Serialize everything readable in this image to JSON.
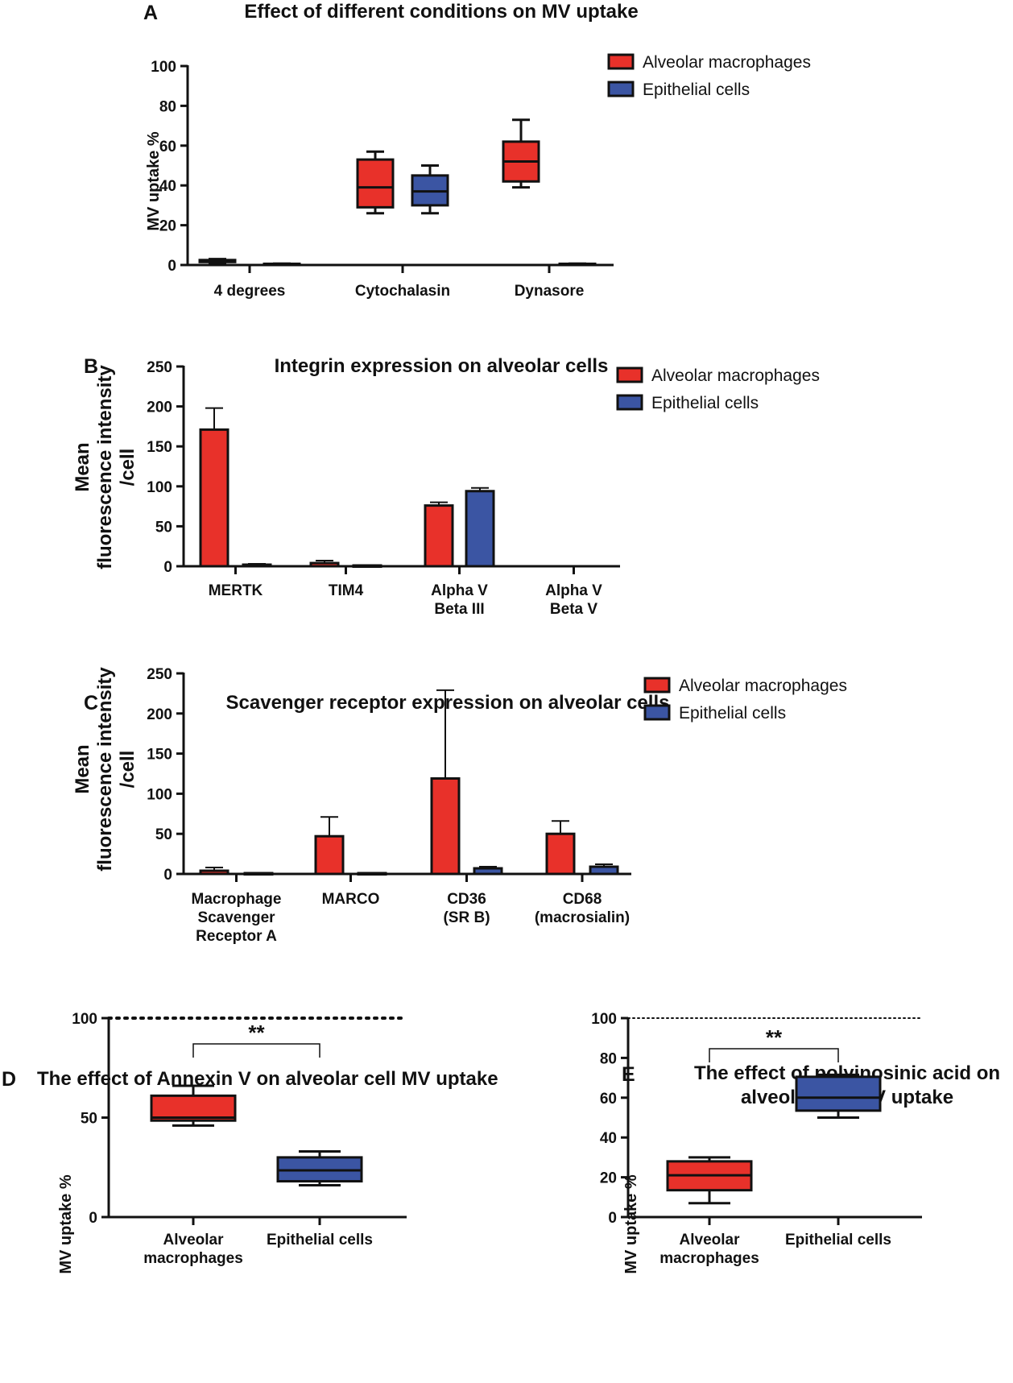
{
  "colors": {
    "macrophage": "#e8312a",
    "epithelial": "#3b55a3"
  },
  "chart_data": [
    {
      "panel": "A",
      "type": "box",
      "title": "Effect of different conditions on MV uptake",
      "ylabel": "MV uptake %",
      "ylim": [
        0,
        100
      ],
      "yticks": [
        0,
        20,
        40,
        60,
        80,
        100
      ],
      "categories": [
        "4 degrees",
        "Cytochalasin",
        "Dynasore"
      ],
      "legend": [
        "Alveolar macrophages",
        "Epithelial cells"
      ],
      "series": [
        {
          "name": "Alveolar macrophages",
          "color_key": "macrophage",
          "boxes": [
            {
              "min": 1,
              "q1": 1.5,
              "median": 2,
              "q3": 2.5,
              "max": 3
            },
            {
              "min": 26,
              "q1": 29,
              "median": 39,
              "q3": 53,
              "max": 57
            },
            {
              "min": 39,
              "q1": 42,
              "median": 52,
              "q3": 62,
              "max": 73
            }
          ]
        },
        {
          "name": "Epithelial cells",
          "color_key": "epithelial",
          "boxes": [
            {
              "min": 0.3,
              "q1": 0.4,
              "median": 0.5,
              "q3": 0.6,
              "max": 0.7
            },
            {
              "min": 26,
              "q1": 30,
              "median": 37,
              "q3": 45,
              "max": 50
            },
            {
              "min": 0.3,
              "q1": 0.4,
              "median": 0.5,
              "q3": 0.6,
              "max": 0.7
            }
          ]
        }
      ]
    },
    {
      "panel": "B",
      "type": "bar",
      "title": "Integrin expression on alveolar cells",
      "ylabel": [
        "Mean",
        "fluorescence intensity",
        "/cell"
      ],
      "ylim": [
        0,
        250
      ],
      "yticks": [
        0,
        50,
        100,
        150,
        200,
        250
      ],
      "categories": [
        [
          "MERTK"
        ],
        [
          "TIM4"
        ],
        [
          "Alpha V",
          "Beta III"
        ],
        [
          "Alpha V",
          "Beta V"
        ]
      ],
      "legend": [
        "Alveolar macrophages",
        "Epithelial cells"
      ],
      "series": [
        {
          "name": "Alveolar macrophages",
          "color_key": "macrophage",
          "values": [
            171,
            4,
            76,
            0
          ],
          "errors": [
            27,
            3,
            4,
            0
          ]
        },
        {
          "name": "Epithelial cells",
          "color_key": "epithelial",
          "values": [
            2,
            1,
            94,
            0
          ],
          "errors": [
            1,
            0.5,
            4,
            0
          ]
        }
      ]
    },
    {
      "panel": "C",
      "type": "bar",
      "title": "Scavenger receptor expression on alveolar cells",
      "ylabel": [
        "Mean",
        "fluorescence intensity",
        "/cell"
      ],
      "ylim": [
        0,
        250
      ],
      "yticks": [
        0,
        50,
        100,
        150,
        200,
        250
      ],
      "categories": [
        [
          "Macrophage",
          "Scavenger",
          "Receptor A"
        ],
        [
          "MARCO"
        ],
        [
          "CD36",
          "(SR B)"
        ],
        [
          "CD68",
          "(macrosialin)"
        ]
      ],
      "legend": [
        "Alveolar macrophages",
        "Epithelial cells"
      ],
      "series": [
        {
          "name": "Alveolar macrophages",
          "color_key": "macrophage",
          "values": [
            4,
            47,
            119,
            50
          ],
          "errors": [
            4,
            24,
            110,
            16
          ]
        },
        {
          "name": "Epithelial cells",
          "color_key": "epithelial",
          "values": [
            1,
            1,
            7,
            9
          ],
          "errors": [
            0.5,
            0.5,
            2,
            3
          ]
        }
      ]
    },
    {
      "panel": "D",
      "type": "box",
      "title": "The effect of Annexin V on alveolar cell MV uptake",
      "ylabel": "MV uptake %",
      "ylim": [
        0,
        100
      ],
      "yticks": [
        0,
        50,
        100
      ],
      "reference_line": 100,
      "categories": [
        [
          "Alveolar",
          "macrophages"
        ],
        [
          "Epithelial cells"
        ]
      ],
      "significance": "**",
      "boxes": [
        {
          "color_key": "macrophage",
          "min": 46,
          "q1": 48.5,
          "median": 50,
          "q3": 61,
          "max": 66
        },
        {
          "color_key": "epithelial",
          "min": 16,
          "q1": 18,
          "median": 23.5,
          "q3": 30,
          "max": 33
        }
      ]
    },
    {
      "panel": "E",
      "type": "box",
      "title": "The effect of polyinosinic acid on alveolar cell MV uptake",
      "title_lines": [
        "The effect of polyinosinic acid on",
        "alveolar cell MV uptake"
      ],
      "ylabel": "MV uptake %",
      "ylim": [
        0,
        100
      ],
      "yticks": [
        0,
        20,
        40,
        60,
        80,
        100
      ],
      "reference_line": 100,
      "categories": [
        [
          "Alveolar",
          "macrophages"
        ],
        [
          "Epithelial cells"
        ]
      ],
      "significance": "**",
      "boxes": [
        {
          "color_key": "macrophage",
          "min": 7,
          "q1": 13.5,
          "median": 21,
          "q3": 28,
          "max": 30
        },
        {
          "color_key": "epithelial",
          "min": 50,
          "q1": 53.5,
          "median": 60,
          "q3": 70.5,
          "max": 71.5
        }
      ]
    }
  ]
}
